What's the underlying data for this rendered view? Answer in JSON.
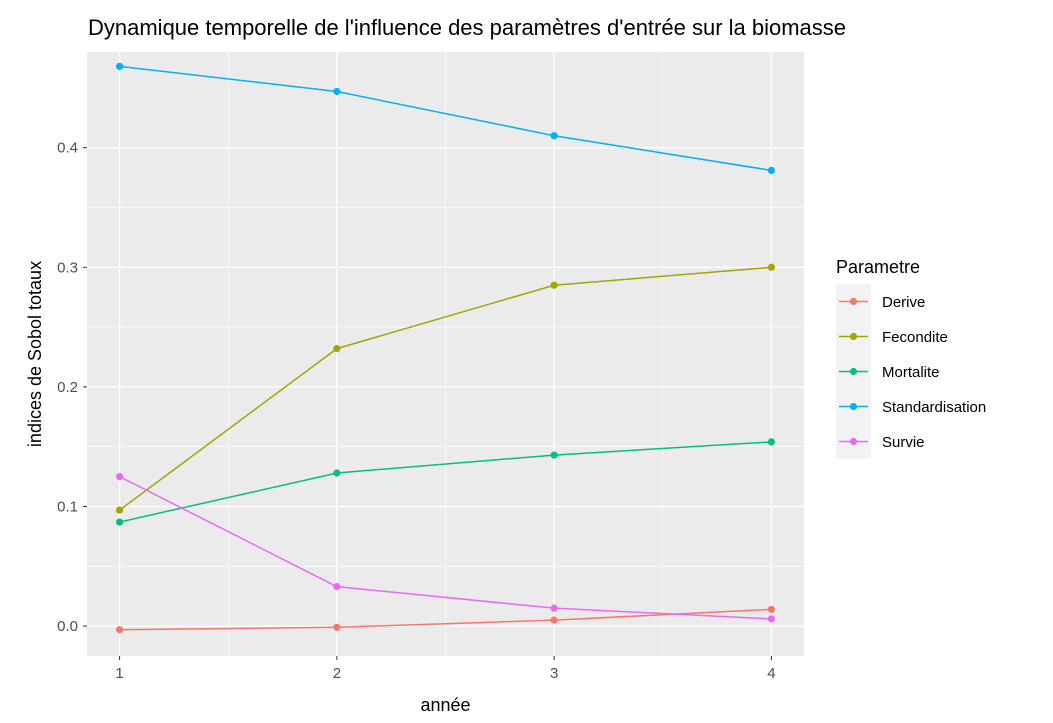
{
  "chart_data": {
    "type": "line",
    "title": "Dynamique temporelle de l'influence des paramètres d'entrée sur la biomasse",
    "xlabel": "année",
    "ylabel": "indices de Sobol totaux",
    "x": [
      1,
      2,
      3,
      4
    ],
    "x_ticks": [
      "1",
      "2",
      "3",
      "4"
    ],
    "y_ticks": [
      "0.0",
      "0.1",
      "0.2",
      "0.3",
      "0.4"
    ],
    "xlim": [
      0.85,
      4.15
    ],
    "ylim": [
      -0.025,
      0.48
    ],
    "grid": true,
    "legend_title": "Parametre",
    "legend_position": "right",
    "series": [
      {
        "name": "Derive",
        "color": "#F8766D",
        "values": [
          -0.003,
          -0.001,
          0.005,
          0.014
        ]
      },
      {
        "name": "Fecondite",
        "color": "#A3A500",
        "values": [
          0.097,
          0.232,
          0.285,
          0.3
        ]
      },
      {
        "name": "Mortalite",
        "color": "#00BF7D",
        "values": [
          0.087,
          0.128,
          0.143,
          0.154
        ]
      },
      {
        "name": "Standardisation",
        "color": "#00B0F6",
        "values": [
          0.468,
          0.447,
          0.41,
          0.381
        ]
      },
      {
        "name": "Survie",
        "color": "#E76BF3",
        "values": [
          0.125,
          0.033,
          0.015,
          0.006
        ]
      }
    ]
  }
}
